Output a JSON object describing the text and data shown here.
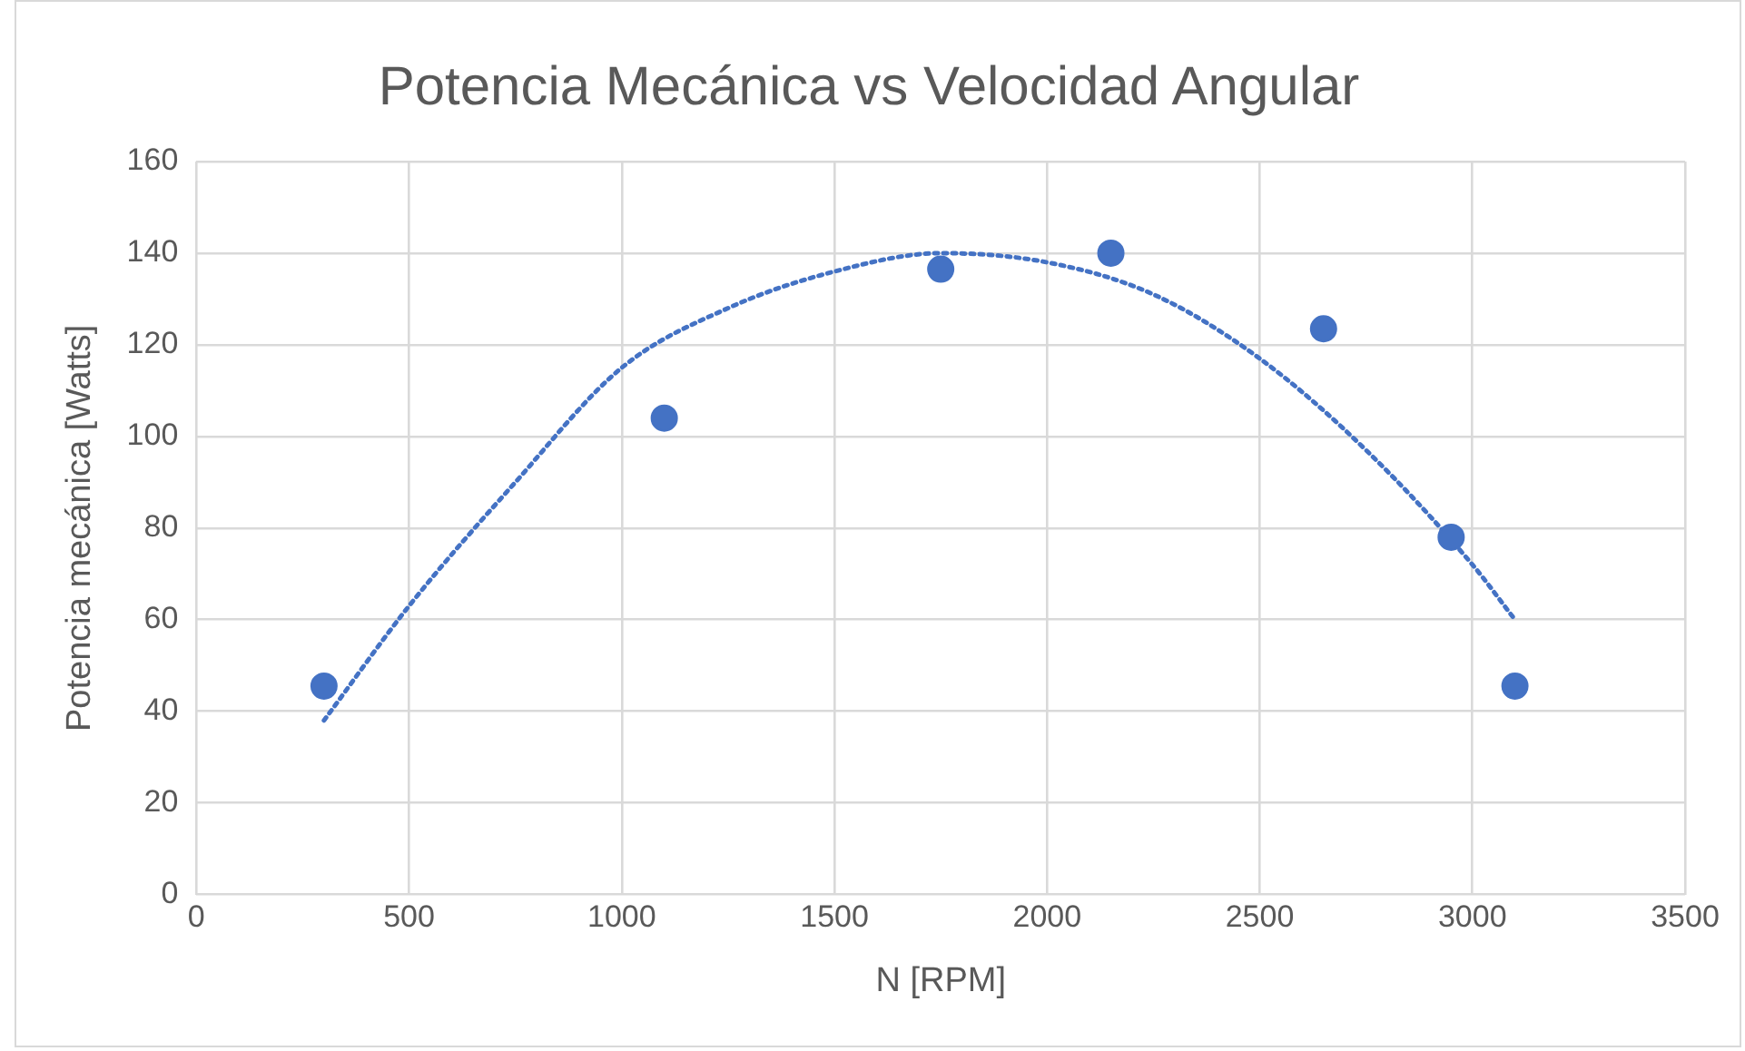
{
  "chart_data": {
    "type": "scatter",
    "title": "Potencia Mecánica vs Velocidad Angular",
    "xlabel": "N [RPM]",
    "ylabel": "Potencia mecánica [Watts]",
    "series": [
      {
        "type": "scatter",
        "color": "#4472c4",
        "marker": "circle",
        "x": [
          300,
          1100,
          1750,
          2150,
          2650,
          2950,
          3100
        ],
        "values": [
          45.5,
          104,
          136.5,
          140,
          123.5,
          78,
          45.5
        ]
      },
      {
        "type": "line",
        "color": "#4472c4",
        "marker": "none",
        "line_style": "dotted",
        "x": [
          300,
          500,
          750,
          1000,
          1250,
          1500,
          1750,
          2000,
          2250,
          2500,
          2750,
          3000,
          3100
        ],
        "values": [
          38,
          63,
          90,
          115,
          128,
          136,
          140,
          138,
          131,
          117,
          97,
          72,
          60
        ]
      }
    ],
    "xlim": [
      0,
      3500
    ],
    "xticks": [
      0,
      500,
      1000,
      1500,
      2000,
      2500,
      3000,
      3500
    ],
    "ylim": [
      0,
      160
    ],
    "yticks": [
      0,
      20,
      40,
      60,
      80,
      100,
      120,
      140,
      160
    ],
    "grid": true,
    "legend": false
  }
}
